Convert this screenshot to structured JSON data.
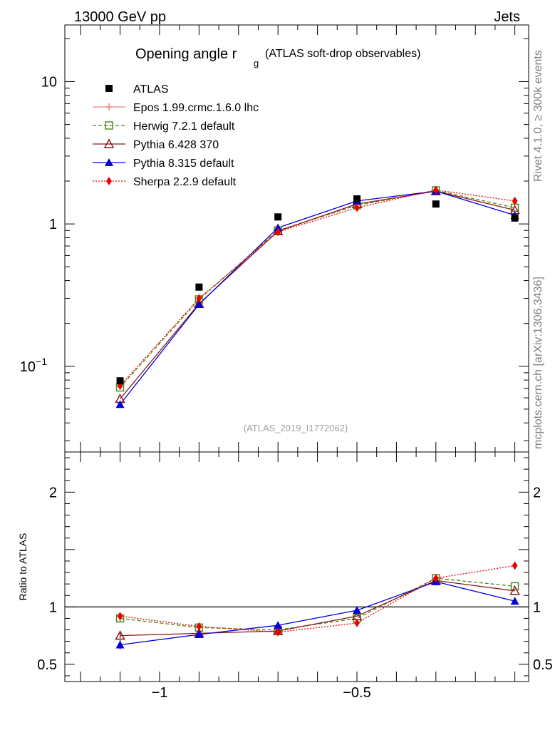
{
  "header": {
    "left": "13000 GeV pp",
    "right": "Jets",
    "side_top": "Rivet 4.1.0, ≥ 300k events",
    "side_bottom": "mcplots.cern.ch [arXiv:1306.3436]"
  },
  "chart_data": {
    "type": "scatter",
    "title_main": "Opening angle r",
    "title_sub": "g",
    "title_suffix": "(ATLAS soft-drop observables)",
    "watermark": "(ATLAS_2019_I1772062)",
    "ratio_ylabel": "Ratio to ATLAS",
    "x_ticklabels": [
      "−1",
      "−0.5"
    ],
    "xlim": [
      -1.24,
      -0.065
    ],
    "main_yscale": "log",
    "main_ylim": [
      0.025,
      25
    ],
    "main_yticks": [
      {
        "value": 10,
        "base": "10",
        "exp": ""
      },
      {
        "value": 1,
        "base": "1",
        "exp": ""
      },
      {
        "value": 0.1,
        "base": "10",
        "exp": "−1"
      }
    ],
    "ratio_ylim": [
      0.35,
      2.35
    ],
    "ratio_yticks": [
      {
        "value": 2,
        "label": "2"
      },
      {
        "value": 1,
        "label": "1"
      },
      {
        "value": 0.5,
        "label": "0.5"
      }
    ],
    "x": [
      -1.1,
      -0.9,
      -0.7,
      -0.5,
      -0.3,
      -0.1
    ],
    "data": {
      "name": "ATLAS",
      "values": [
        0.079,
        0.36,
        1.12,
        1.5,
        1.38,
        1.1
      ],
      "color": "#000000"
    },
    "series": [
      {
        "name": "Epos 1.99.crmc.1.6.0 lhc",
        "color": "#f08080",
        "dash": "",
        "marker": "cross",
        "values": [
          null,
          null,
          null,
          null,
          null,
          null
        ],
        "ratio": [
          null,
          null,
          null,
          null,
          null,
          null
        ]
      },
      {
        "name": "Herwig 7.2.1 default",
        "color": "#4b8b1e",
        "dash": "5,3",
        "marker": "square-open",
        "values": [
          0.071,
          0.295,
          0.9,
          1.35,
          1.72,
          1.3
        ],
        "ratio": [
          0.9,
          0.82,
          0.8,
          0.9,
          1.25,
          1.18
        ]
      },
      {
        "name": "Pythia 6.428 370",
        "color": "#8b1a1a",
        "dash": "",
        "marker": "triangle-open",
        "values": [
          0.059,
          0.275,
          0.89,
          1.38,
          1.7,
          1.25
        ],
        "ratio": [
          0.75,
          0.77,
          0.79,
          0.92,
          1.23,
          1.14
        ]
      },
      {
        "name": "Pythia 8.315 default",
        "color": "#0000dd",
        "dash": "",
        "marker": "triangle",
        "values": [
          0.054,
          0.272,
          0.94,
          1.45,
          1.7,
          1.15
        ],
        "ratio": [
          0.67,
          0.76,
          0.84,
          0.97,
          1.22,
          1.05
        ]
      },
      {
        "name": "Sherpa 2.2.9 default",
        "color": "#ee0000",
        "dash": "2,2",
        "marker": "diamond",
        "values": [
          0.073,
          0.3,
          0.88,
          1.3,
          1.73,
          1.45
        ],
        "ratio": [
          0.92,
          0.83,
          0.78,
          0.86,
          1.25,
          1.36
        ]
      }
    ]
  }
}
